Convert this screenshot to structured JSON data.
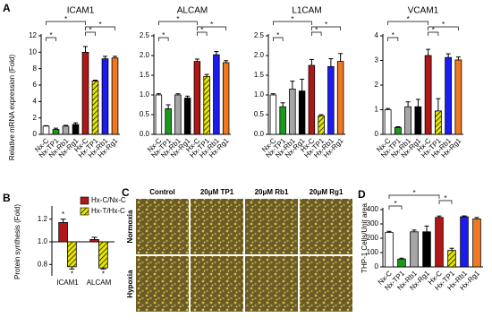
{
  "panels": [
    "A",
    "B",
    "C",
    "D"
  ],
  "chart_data": [
    {
      "type": "bar",
      "title": "ICAM1",
      "ylabel": "Relative mRNA expression (Fold)",
      "categories": [
        "Nx-C",
        "Nx-TP1",
        "Nx-Rb1",
        "Nx-Rg1",
        "Hx-C",
        "Hx-TP1",
        "Hx-Rb1",
        "Hx-Rg1"
      ],
      "values": [
        1,
        0.6,
        1.0,
        1.2,
        10,
        6.5,
        9.2,
        9.3
      ],
      "errors": [
        0.05,
        0.15,
        0.1,
        0.2,
        0.7,
        0.1,
        0.3,
        0.2
      ],
      "colors": [
        "#ffffff",
        "#1a9a1a",
        "#a6a6a6",
        "#000000",
        "#b01818",
        "#e6e600",
        "#1c1cf0",
        "#f07820"
      ],
      "hatch": [
        false,
        false,
        false,
        false,
        false,
        true,
        false,
        false
      ],
      "ylim": [
        0,
        12
      ],
      "yticks": [
        0,
        2,
        4,
        6,
        8,
        10,
        12
      ],
      "significance": [
        {
          "pair": [
            "Nx-C",
            "Hx-C"
          ],
          "label": "*"
        },
        {
          "pair": [
            "Hx-C",
            "Hx-Rg1"
          ],
          "label": "*"
        },
        {
          "pair": [
            "Hx-C",
            "Hx-TP1"
          ],
          "label": "*"
        },
        {
          "pair": [
            "Nx-C",
            "Nx-TP1"
          ],
          "label": "*"
        }
      ]
    },
    {
      "type": "bar",
      "title": "ALCAM",
      "categories": [
        "Nx-C",
        "Nx-TP1",
        "Nx-Rb1",
        "Nx-Rg1",
        "Hx-C",
        "Hx-TP1",
        "Hx-Rb1",
        "Hx-Rg1"
      ],
      "values": [
        1,
        0.65,
        1.0,
        0.92,
        1.85,
        1.47,
        2.02,
        1.82
      ],
      "errors": [
        0.03,
        0.1,
        0.03,
        0.05,
        0.06,
        0.05,
        0.08,
        0.05
      ],
      "colors": [
        "#ffffff",
        "#1a9a1a",
        "#a6a6a6",
        "#000000",
        "#b01818",
        "#e6e600",
        "#1c1cf0",
        "#f07820"
      ],
      "hatch": [
        false,
        false,
        false,
        false,
        false,
        true,
        false,
        false
      ],
      "ylim": [
        0,
        2.5
      ],
      "yticks": [
        {
          "value": 0,
          "label": "0.0"
        },
        {
          "value": 0.5,
          "label": "0.5"
        },
        {
          "value": 1,
          "label": "1.0"
        },
        {
          "value": 1.5,
          "label": "1.5"
        },
        {
          "value": 2,
          "label": "2.0"
        },
        {
          "value": 2.5,
          "label": "2.5"
        }
      ],
      "significance": [
        {
          "pair": [
            "Nx-C",
            "Hx-C"
          ],
          "label": "*"
        },
        {
          "pair": [
            "Hx-C",
            "Hx-Rg1"
          ],
          "label": "*"
        },
        {
          "pair": [
            "Hx-C",
            "Hx-TP1"
          ],
          "label": "*"
        },
        {
          "pair": [
            "Nx-C",
            "Nx-TP1"
          ],
          "label": "*"
        }
      ]
    },
    {
      "type": "bar",
      "title": "L1CAM",
      "categories": [
        "Nx-C",
        "Nx-TP1",
        "Nx-Rb1",
        "Nx-Rg1",
        "Hx-C",
        "Hx-TP1",
        "Hx-Rb1",
        "Hx-Rg1"
      ],
      "values": [
        1,
        0.7,
        1.15,
        1.1,
        1.75,
        0.47,
        1.72,
        1.85
      ],
      "errors": [
        0.03,
        0.1,
        0.2,
        0.3,
        0.15,
        0.03,
        0.2,
        0.2
      ],
      "colors": [
        "#ffffff",
        "#1a9a1a",
        "#a6a6a6",
        "#000000",
        "#b01818",
        "#e6e600",
        "#1c1cf0",
        "#f07820"
      ],
      "hatch": [
        false,
        false,
        false,
        false,
        false,
        true,
        false,
        false
      ],
      "ylim": [
        0,
        2.5
      ],
      "yticks": [
        {
          "value": 0,
          "label": "0.0"
        },
        {
          "value": 0.5,
          "label": "0.5"
        },
        {
          "value": 1,
          "label": "1.0"
        },
        {
          "value": 1.5,
          "label": "1.5"
        },
        {
          "value": 2,
          "label": "2.0"
        },
        {
          "value": 2.5,
          "label": "2.5"
        }
      ],
      "significance": [
        {
          "pair": [
            "Nx-C",
            "Hx-C"
          ],
          "label": "*"
        },
        {
          "pair": [
            "Hx-C",
            "Hx-Rg1"
          ],
          "label": "*"
        },
        {
          "pair": [
            "Hx-C",
            "Hx-TP1"
          ],
          "label": "*"
        },
        {
          "pair": [
            "Nx-C",
            "Nx-TP1"
          ],
          "label": "*"
        }
      ]
    },
    {
      "type": "bar",
      "title": "VCAM1",
      "categories": [
        "Nx-C",
        "Nx-TP1",
        "Nx-Rb1",
        "Nx-Rg1",
        "Hx-C",
        "Hx-TP1",
        "Hx-Rb1",
        "Hx-Rg1"
      ],
      "values": [
        1,
        0.28,
        1.12,
        1.12,
        3.2,
        0.95,
        3.12,
        3.02
      ],
      "errors": [
        0.05,
        0.03,
        0.2,
        0.3,
        0.25,
        0.5,
        0.15,
        0.12
      ],
      "colors": [
        "#ffffff",
        "#1a9a1a",
        "#a6a6a6",
        "#000000",
        "#b01818",
        "#e6e600",
        "#1c1cf0",
        "#f07820"
      ],
      "hatch": [
        false,
        false,
        false,
        false,
        false,
        true,
        false,
        false
      ],
      "ylim": [
        0,
        4
      ],
      "yticks": [
        0,
        1,
        2,
        3,
        4
      ],
      "significance": [
        {
          "pair": [
            "Nx-C",
            "Hx-C"
          ],
          "label": "*"
        },
        {
          "pair": [
            "Hx-C",
            "Hx-Rg1"
          ],
          "label": "*"
        },
        {
          "pair": [
            "Hx-C",
            "Hx-TP1"
          ],
          "label": "*"
        },
        {
          "pair": [
            "Nx-C",
            "Nx-TP1"
          ],
          "label": "*"
        }
      ]
    },
    {
      "type": "bar",
      "ylabel": "Protein synthesis (Fold)",
      "categories": [
        "ICAM1",
        "ALCAM"
      ],
      "series": [
        {
          "name": "Hx-C/Nx-C",
          "color": "#b01818",
          "hatch": false,
          "values": [
            1.17,
            1.02
          ],
          "errors": [
            0.03,
            0.02
          ]
        },
        {
          "name": "Hx-T/Hx-C",
          "color": "#e6e600",
          "hatch": true,
          "values": [
            0.78,
            0.77
          ],
          "errors": [
            0.02,
            0.01
          ]
        }
      ],
      "baseline": 1,
      "ylim": [
        0.7,
        1.3
      ],
      "yticks": [
        {
          "value": 0.8,
          "label": "0.8"
        },
        {
          "value": 1,
          "label": "1.0"
        },
        {
          "value": 1.2,
          "label": "1.2"
        }
      ],
      "legend": "top-right",
      "significance": [
        {
          "category": "ICAM1",
          "series": "Hx-C/Nx-C",
          "label": "*"
        },
        {
          "category": "ICAM1",
          "series": "Hx-T/Hx-C",
          "label": "*"
        },
        {
          "category": "ALCAM",
          "series": "Hx-T/Hx-C",
          "label": "*"
        }
      ]
    },
    {
      "type": "bar",
      "ylabel": "THP-1 Cells/Unit area",
      "categories": [
        "Nx-C",
        "Nx-TP1",
        "Nx-Rb1",
        "Nx-Rg1",
        "Hx-C",
        "Hx-TP1",
        "Hx-Rb1",
        "Hx-Rg1"
      ],
      "values": [
        240,
        55,
        245,
        245,
        345,
        115,
        350,
        335
      ],
      "errors": [
        8,
        6,
        12,
        40,
        10,
        15,
        6,
        10
      ],
      "colors": [
        "#ffffff",
        "#1a9a1a",
        "#a6a6a6",
        "#000000",
        "#b01818",
        "#e6e600",
        "#1c1cf0",
        "#f07820"
      ],
      "hatch": [
        false,
        false,
        false,
        false,
        false,
        true,
        false,
        false
      ],
      "ylim": [
        0,
        400
      ],
      "yticks": [
        0,
        100,
        200,
        300,
        400
      ],
      "significance": [
        {
          "pair": [
            "Nx-C",
            "Hx-C"
          ],
          "label": "*"
        },
        {
          "pair": [
            "Hx-C",
            "Hx-TP1"
          ],
          "label": "*"
        },
        {
          "pair": [
            "Nx-C",
            "Nx-TP1"
          ],
          "label": "*"
        }
      ]
    }
  ],
  "image_grid": {
    "columns": [
      "Control",
      "20μM TP1",
      "20μM Rb1",
      "20μM Rg1"
    ],
    "rows": [
      "Normoxia",
      "Hypoxia"
    ]
  }
}
